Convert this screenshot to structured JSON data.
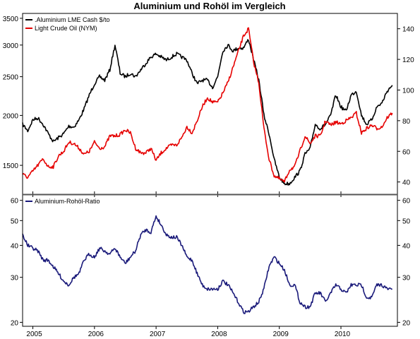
{
  "chart_data": {
    "type": "line",
    "title": "Aluminium und Rohöl im Vergleich",
    "x_ticks": [
      "2005",
      "2006",
      "2007",
      "2008",
      "2009",
      "2010"
    ],
    "x_range": [
      "2004-11",
      "2010-12"
    ],
    "panels": [
      {
        "name": "top",
        "legend_position": "top-left",
        "left_axis": {
          "scale": "log",
          "ticks": [
            "1500",
            "2000",
            "2500",
            "3000",
            "3500"
          ]
        },
        "right_axis": {
          "scale": "linear",
          "ticks": [
            "40",
            "60",
            "80",
            "100",
            "120",
            "140"
          ]
        },
        "series": [
          {
            "name": ".Aluminium LME Cash $/to",
            "color": "#000000",
            "axis": "left",
            "x": [
              "2004-11",
              "2004-12",
              "2005-01",
              "2005-02",
              "2005-03",
              "2005-04",
              "2005-05",
              "2005-06",
              "2005-07",
              "2005-08",
              "2005-09",
              "2005-10",
              "2005-11",
              "2005-12",
              "2006-01",
              "2006-02",
              "2006-03",
              "2006-04",
              "2006-05",
              "2006-06",
              "2006-07",
              "2006-08",
              "2006-09",
              "2006-10",
              "2006-11",
              "2006-12",
              "2007-01",
              "2007-02",
              "2007-03",
              "2007-04",
              "2007-05",
              "2007-06",
              "2007-07",
              "2007-08",
              "2007-09",
              "2007-10",
              "2007-11",
              "2007-12",
              "2008-01",
              "2008-02",
              "2008-03",
              "2008-04",
              "2008-05",
              "2008-06",
              "2008-07",
              "2008-08",
              "2008-09",
              "2008-10",
              "2008-11",
              "2008-12",
              "2009-01",
              "2009-02",
              "2009-03",
              "2009-04",
              "2009-05",
              "2009-06",
              "2009-07",
              "2009-08",
              "2009-09",
              "2009-10",
              "2009-11",
              "2009-12",
              "2010-01",
              "2010-02",
              "2010-03",
              "2010-04",
              "2010-05",
              "2010-06",
              "2010-07",
              "2010-08",
              "2010-09",
              "2010-10",
              "2010-11"
            ],
            "values": [
              1900,
              1830,
              1950,
              1970,
              1900,
              1800,
              1720,
              1760,
              1800,
              1880,
              1870,
              1950,
              2080,
              2250,
              2400,
              2500,
              2450,
              2600,
              3000,
              2550,
              2500,
              2550,
              2500,
              2600,
              2700,
              2800,
              2850,
              2800,
              2750,
              2800,
              2850,
              2800,
              2750,
              2550,
              2400,
              2450,
              2450,
              2350,
              2500,
              2900,
              3000,
              2900,
              2950,
              2950,
              3100,
              2750,
              2450,
              2000,
              1800,
              1550,
              1400,
              1350,
              1350,
              1400,
              1450,
              1600,
              1650,
              1900,
              1850,
              1900,
              2000,
              2250,
              2100,
              2050,
              2250,
              2300,
              2000,
              1900,
              1950,
              2100,
              2150,
              2300,
              2380
            ]
          },
          {
            "name": "Light Crude Oil (NYM)",
            "color": "#e60000",
            "axis": "right",
            "x": [
              "2004-11",
              "2004-12",
              "2005-01",
              "2005-02",
              "2005-03",
              "2005-04",
              "2005-05",
              "2005-06",
              "2005-07",
              "2005-08",
              "2005-09",
              "2005-10",
              "2005-11",
              "2005-12",
              "2006-01",
              "2006-02",
              "2006-03",
              "2006-04",
              "2006-05",
              "2006-06",
              "2006-07",
              "2006-08",
              "2006-09",
              "2006-10",
              "2006-11",
              "2006-12",
              "2007-01",
              "2007-02",
              "2007-03",
              "2007-04",
              "2007-05",
              "2007-06",
              "2007-07",
              "2007-08",
              "2007-09",
              "2007-10",
              "2007-11",
              "2007-12",
              "2008-01",
              "2008-02",
              "2008-03",
              "2008-04",
              "2008-05",
              "2008-06",
              "2008-07",
              "2008-08",
              "2008-09",
              "2008-10",
              "2008-11",
              "2008-12",
              "2009-01",
              "2009-02",
              "2009-03",
              "2009-04",
              "2009-05",
              "2009-06",
              "2009-07",
              "2009-08",
              "2009-09",
              "2009-10",
              "2009-11",
              "2009-12",
              "2010-01",
              "2010-02",
              "2010-03",
              "2010-04",
              "2010-05",
              "2010-06",
              "2010-07",
              "2010-08",
              "2010-09",
              "2010-10",
              "2010-11"
            ],
            "values": [
              45,
              43,
              47,
              51,
              55,
              50,
              50,
              57,
              60,
              66,
              65,
              62,
              58,
              60,
              66,
              62,
              63,
              70,
              70,
              71,
              74,
              72,
              62,
              59,
              59,
              62,
              54,
              59,
              62,
              64,
              64,
              69,
              76,
              72,
              80,
              89,
              95,
              92,
              92,
              98,
              105,
              115,
              125,
              135,
              140,
              118,
              105,
              75,
              55,
              44,
              42,
              40,
              48,
              50,
              60,
              70,
              65,
              70,
              70,
              80,
              77,
              79,
              78,
              80,
              82,
              85,
              72,
              75,
              77,
              75,
              76,
              82,
              85
            ]
          }
        ]
      },
      {
        "name": "bottom",
        "legend_position": "top-left",
        "left_axis": {
          "scale": "log",
          "ticks": [
            "20",
            "30",
            "40",
            "50",
            "60"
          ]
        },
        "right_axis": {
          "scale": "log",
          "ticks": [
            "20",
            "30",
            "40",
            "50",
            "60"
          ]
        },
        "series": [
          {
            "name": "Aluminium-Rohöl-Ratio",
            "color": "#1a1a7a",
            "axis": "left",
            "x": [
              "2004-11",
              "2004-12",
              "2005-01",
              "2005-02",
              "2005-03",
              "2005-04",
              "2005-05",
              "2005-06",
              "2005-07",
              "2005-08",
              "2005-09",
              "2005-10",
              "2005-11",
              "2005-12",
              "2006-01",
              "2006-02",
              "2006-03",
              "2006-04",
              "2006-05",
              "2006-06",
              "2006-07",
              "2006-08",
              "2006-09",
              "2006-10",
              "2006-11",
              "2006-12",
              "2007-01",
              "2007-02",
              "2007-03",
              "2007-04",
              "2007-05",
              "2007-06",
              "2007-07",
              "2007-08",
              "2007-09",
              "2007-10",
              "2007-11",
              "2007-12",
              "2008-01",
              "2008-02",
              "2008-03",
              "2008-04",
              "2008-05",
              "2008-06",
              "2008-07",
              "2008-08",
              "2008-09",
              "2008-10",
              "2008-11",
              "2008-12",
              "2009-01",
              "2009-02",
              "2009-03",
              "2009-04",
              "2009-05",
              "2009-06",
              "2009-07",
              "2009-08",
              "2009-09",
              "2009-10",
              "2009-11",
              "2009-12",
              "2010-01",
              "2010-02",
              "2010-03",
              "2010-04",
              "2010-05",
              "2010-06",
              "2010-07",
              "2010-08",
              "2010-09",
              "2010-10",
              "2010-11"
            ],
            "values": [
              44,
              40,
              39,
              38,
              35,
              35,
              33,
              31,
              29,
              28,
              30,
              31,
              35,
              37,
              36,
              39,
              38,
              37,
              39,
              36,
              34,
              36,
              38,
              44,
              46,
              45,
              52,
              48,
              44,
              43,
              43,
              40,
              36,
              35,
              31,
              28,
              27,
              27,
              27,
              29,
              28,
              26,
              24,
              22,
              22,
              23,
              24,
              27,
              33,
              36,
              34,
              32,
              28,
              28,
              24,
              23,
              23,
              26,
              26,
              24,
              26,
              28,
              27,
              26,
              28,
              28,
              28,
              25,
              25,
              28,
              28,
              27,
              27
            ]
          }
        ]
      }
    ]
  }
}
